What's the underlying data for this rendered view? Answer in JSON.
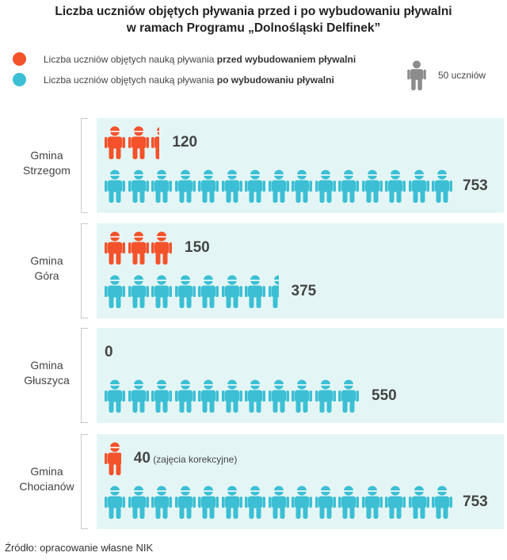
{
  "title_line1": "Liczba uczniów objętych pływania przed i po wybudowaniu pływalni",
  "title_line2": "w ramach Programu „Dolnośląski Delfinek”",
  "legend": {
    "before_prefix": "Liczba uczniów objętych nauką pływania ",
    "before_bold": "przed wybudowaniem pływalni",
    "after_prefix": "Liczba uczniów objętych nauką pływania ",
    "after_bold": "po wybudowaniu pływalni",
    "unit_label": "50 uczniów"
  },
  "colors": {
    "before": "#f4522b",
    "after": "#3cbfd4",
    "unit": "#8c8c8c",
    "panel": "#e3f6f5"
  },
  "chart_data": {
    "type": "pictogram",
    "unit_value": 50,
    "series": [
      {
        "name": "przed wybudowaniem pływalni",
        "color": "#f4522b"
      },
      {
        "name": "po wybudowaniu pływalni",
        "color": "#3cbfd4"
      }
    ],
    "gminy": [
      {
        "line1": "Gmina",
        "line2": "Strzegom",
        "before": 120,
        "before_label": "120",
        "after": 753,
        "after_label": "753",
        "note": ""
      },
      {
        "line1": "Gmina",
        "line2": "Góra",
        "before": 150,
        "before_label": "150",
        "after": 375,
        "after_label": "375",
        "note": ""
      },
      {
        "line1": "Gmina",
        "line2": "Głuszyca",
        "before": 0,
        "before_label": "0",
        "after": 550,
        "after_label": "550",
        "note": ""
      },
      {
        "line1": "Gmina",
        "line2": "Chocianów",
        "before": 40,
        "before_label": "40",
        "after": 753,
        "after_label": "753",
        "note": "(zajęcia korekcyjne)"
      }
    ]
  },
  "source": "Źródło: opracowanie własne NIK"
}
